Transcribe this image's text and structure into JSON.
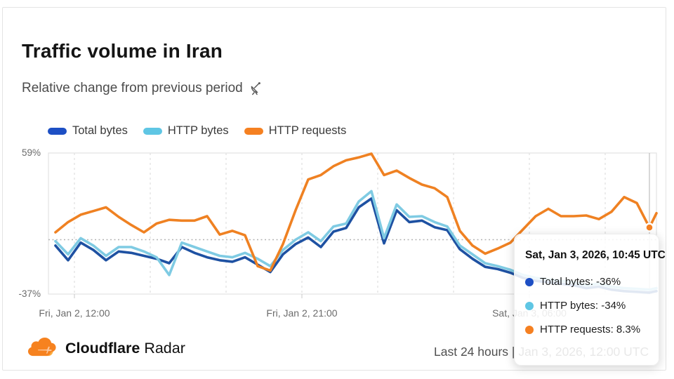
{
  "header": {
    "title": "Traffic volume in Iran",
    "subtitle": "Relative change from previous period",
    "subtitle_icon": "satellite-dish-icon"
  },
  "legend": [
    {
      "label": "Total bytes"
    },
    {
      "label": "HTTP bytes"
    },
    {
      "label": "HTTP requests"
    }
  ],
  "chart_data": {
    "type": "line",
    "title": "Traffic volume in Iran",
    "unit": "%",
    "ylim": [
      -37,
      59
    ],
    "yticks": [
      "59%",
      "-37%"
    ],
    "grid": "vertical dashed lines every 3h, dotted horizontal zero line",
    "x_start": "Fri, Jan 2, 11:15 UTC",
    "x_step_minutes": 30,
    "x": [
      "11:15",
      "11:45",
      "12:15",
      "12:45",
      "13:15",
      "13:45",
      "14:15",
      "14:45",
      "15:15",
      "15:45",
      "16:15",
      "16:45",
      "17:15",
      "17:45",
      "18:15",
      "18:45",
      "19:15",
      "19:45",
      "20:15",
      "20:45",
      "21:15",
      "21:45",
      "22:15",
      "22:45",
      "23:15",
      "23:45",
      "00:15",
      "00:45",
      "01:15",
      "01:45",
      "02:15",
      "02:45",
      "03:15",
      "03:45",
      "04:15",
      "04:45",
      "05:15",
      "05:45",
      "06:15",
      "06:45",
      "07:15",
      "07:45",
      "08:15",
      "08:45",
      "09:15",
      "09:45",
      "10:15",
      "10:45",
      "11:15"
    ],
    "xticks": [
      {
        "label": "Fri, Jan 2, 12:00",
        "grid_index": 0
      },
      {
        "label": "Fri, Jan 2, 21:00",
        "grid_index": 3
      },
      {
        "label": "Sat, Jan 3, 06:00",
        "grid_index": 6
      }
    ],
    "series": [
      {
        "name": "Total bytes",
        "color": "#1e51a2",
        "accent": "#1d4fc4",
        "values": [
          -4,
          -14,
          -2,
          -7,
          -14,
          -8,
          -9,
          -11,
          -13,
          -16,
          -5,
          -9,
          -12,
          -14,
          -15,
          -12,
          -17,
          -22,
          -10,
          -3,
          1.5,
          -5,
          5.5,
          8,
          22,
          28,
          -2.5,
          20,
          12,
          13,
          8.5,
          6.5,
          -6.5,
          -13,
          -18.5,
          -20,
          -22.5,
          -26,
          -28,
          -29,
          -30,
          -31,
          -33,
          -32,
          -34,
          -35,
          -35.5,
          -36,
          -35
        ]
      },
      {
        "name": "HTTP bytes",
        "color": "#7fcbe3",
        "accent": "#5fc6e4",
        "values": [
          -1,
          -10,
          1,
          -4,
          -11,
          -5,
          -5,
          -8,
          -12,
          -24,
          -2,
          -5,
          -8,
          -11,
          -12,
          -9,
          -13,
          -18,
          -7,
          0,
          5,
          -1,
          9,
          11,
          26,
          33,
          1,
          24,
          15.5,
          16,
          12,
          9,
          -4,
          -10,
          -16,
          -18,
          -20.5,
          -24,
          -26,
          -27,
          -28,
          -29,
          -31,
          -30,
          -32,
          -33,
          -33.5,
          -34,
          -33
        ]
      },
      {
        "name": "HTTP requests",
        "color": "#ef8122",
        "accent": "#f58021",
        "values": [
          5,
          12,
          17,
          19.5,
          22,
          15.5,
          10,
          5,
          11,
          13.5,
          13,
          13,
          16,
          3.5,
          6,
          3,
          -18,
          -21,
          -3,
          20,
          41,
          44,
          50,
          54,
          56,
          58.5,
          44,
          47,
          42,
          37.5,
          35,
          29,
          6,
          -4,
          -9.5,
          -6,
          -2,
          7,
          16,
          21,
          16,
          16,
          16.5,
          14,
          19,
          29,
          25,
          8.3,
          18
        ]
      }
    ],
    "hover_index": 47
  },
  "tooltip": {
    "title": "Sat, Jan 3, 2026, 10:45 UTC",
    "rows": [
      {
        "text": "Total bytes: -36%"
      },
      {
        "text": "HTTP bytes: -34%"
      },
      {
        "text": "HTTP requests: 8.3%"
      }
    ]
  },
  "footer": {
    "brand_bold": "Cloudflare",
    "brand_light": "Radar",
    "range_text": "Last 24 hours | Jan 3, 2026, 12:00 UTC"
  },
  "colors": {
    "brand_orange": "#F6821F",
    "brand_orange_light": "#FBAD41",
    "grid_gray": "#d8d8d8",
    "axis_text": "#6b6b6b"
  }
}
